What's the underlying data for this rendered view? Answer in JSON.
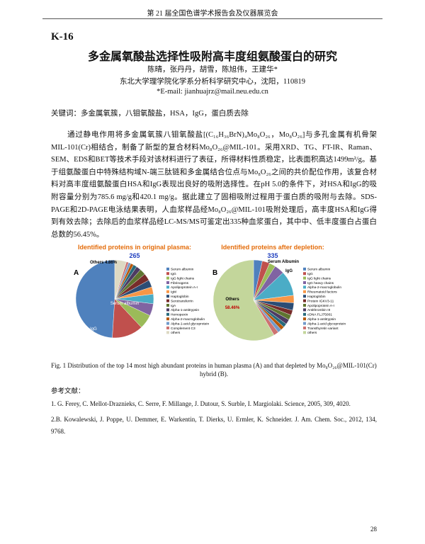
{
  "header": "第 21 届全国色谱学术报告会及仪器展览会",
  "paper": {
    "id": "K-16",
    "title": "多金属氧酸盐选择性吸附高丰度组氨酸蛋白的研究",
    "authors": "陈晴，张丹丹，胡雪，陈旭伟，王建华*",
    "affiliation": "东北大学理学院化学系分析科学研究中心，沈阳，110819",
    "email": "*E-mail: jianhuajrz@mail.neu.edu.cn",
    "keywords": "关键词：多金属氧簇，八钼氧酸盐，HSA，IgG，蛋白质去除",
    "abstract": "通过静电作用将多金属氧簇八钼氧酸盐[(C₁₆H₃₆BrN)₄Mo₈O₂₆，Mo₈O₂₆]与多孔金属有机骨架MIL-101(Cr)相结合，制备了新型的复合材料Mo₈O₂₆@MIL-101。采用XRD、TG、FT-IR、Raman、SEM、EDS和BET等技术手段对该材料进行了表征，所得材料性质稳定，比表面积高达1499m²/g。基于组氨酸蛋白中特殊结构域N-端三肽链和多金属结合位点与Mo₈O₂₆之间的共价配位作用，该复合材料对高丰度组氨酸蛋白HSA和IgG表现出良好的吸附选择性。在pH 5.0的条件下，对HSA和IgG的吸附容量分别为785.6 mg/g和420.1 mg/g。据此建立了固相吸附过程用于蛋白质的吸附与去除。SDS-PAGE和2D-PAGE电泳结果表明，人血浆样品经Mo₈O₂₆@MIL-101吸附处理后，高丰度HSA和IgG得到有效去除；去除后的血浆样品经LC-MS/MS可鉴定出335种血浆蛋白，其中中、低丰度蛋白占蛋白总数的56.45%。",
    "figure_caption": "Fig. 1 Distribution of the top 14 most high abundant proteins in human plasma (A) and that depleted by Mo₈O₂₆@MIL-101(Cr) hybrid (B).",
    "references_heading": "参考文献：",
    "references": [
      "1. G. Ferey, C. Mellot-Draznieks, C. Serre, F. Millange, J. Dutour, S. Surble, I. Margiolaki. Science, 2005, 309, 4020.",
      "2.B. Kowalewski, J. Poppe, U. Demmer, E. Warkentin, T. Dierks, U. Ermler, K. Schneider. J. Am. Chem. Soc., 2012, 134, 9768."
    ],
    "page_number": "28"
  },
  "chart_data": [
    {
      "type": "pie",
      "panel": "A",
      "title": "Identified proteins in original plasma:",
      "total": 265,
      "categories": [
        "Serum albumin",
        "IgG",
        "IgG light chains",
        "Fibrinogens",
        "Apolipoprotein A-I",
        "IgM",
        "Haptoglobin",
        "Serotransferrin",
        "IgA",
        "Alpha-1-antitrypsin",
        "Hemopexin",
        "Alpha-2-macroglobulin",
        "Alpha-1-acid glycoprotein",
        "Complement C3",
        "others"
      ],
      "values": [
        49,
        13,
        6,
        5,
        4,
        3,
        3,
        3,
        2.5,
        2,
        1.5,
        1.2,
        1,
        0.94,
        4.86
      ],
      "colors": [
        "#4f81bd",
        "#c0504d",
        "#9bbb59",
        "#8064a2",
        "#4bacc6",
        "#f79646",
        "#2c4d75",
        "#772c2a",
        "#5f7530",
        "#4d3b62",
        "#276a7c",
        "#b65708",
        "#729aca",
        "#cd7371",
        "#ddd9c3"
      ],
      "annotations": [
        "Others 4.86%",
        "Serum albumin",
        "IgG"
      ]
    },
    {
      "type": "pie",
      "panel": "B",
      "title": "Identified proteins after depletion:",
      "total": 335,
      "categories": [
        "Serum albumin",
        "IgG",
        "IgG light chains",
        "IgG heavy chains",
        "Alpha-2-macroglobulin",
        "Rheumatoid factors",
        "Haptoglobin",
        "Protein IGKV3-11",
        "Apolipoprotein A-I",
        "Antithrombin III",
        "cDNA FLJ75001",
        "Alpha-1-antitrypsin",
        "Alpha-1-acid glycoprotein",
        "Transthyretin variant",
        "others"
      ],
      "values": [
        3.5,
        3,
        2.5,
        4,
        10,
        3,
        3,
        2,
        2,
        2,
        1.5,
        1.5,
        1.54,
        2,
        58.46
      ],
      "colors": [
        "#4f81bd",
        "#c0504d",
        "#9bbb59",
        "#8064a2",
        "#4bacc6",
        "#f79646",
        "#2c4d75",
        "#772c2a",
        "#5f7530",
        "#4d3b62",
        "#276a7c",
        "#b65708",
        "#729aca",
        "#cd7371",
        "#c3d69b"
      ],
      "annotations": [
        "Serum  Albumin",
        "IgG",
        "Others",
        "58.46%"
      ]
    }
  ]
}
